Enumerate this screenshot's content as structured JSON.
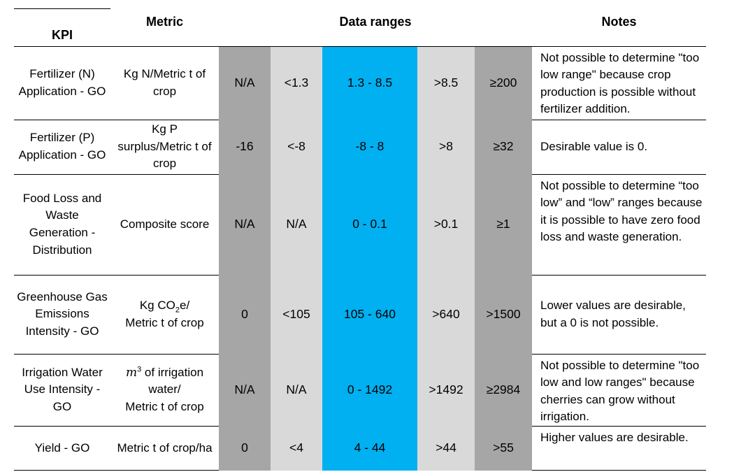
{
  "header": {
    "kpi": "KPI",
    "metric": "Metric",
    "data_ranges": "Data ranges",
    "notes": "Notes"
  },
  "rows": [
    {
      "kpi": "Fertilizer (N) Application - GO",
      "metric": "Kg N/Metric t of crop",
      "ranges": [
        "N/A",
        "<1.3",
        "1.3 - 8.5",
        ">8.5",
        "≥200"
      ],
      "notes": "Not possible to determine \"too low range\" because crop production is possible without fertilizer addition."
    },
    {
      "kpi": "Fertilizer (P) Application - GO",
      "metric": "Kg P surplus/Metric t of crop",
      "ranges": [
        "-16",
        "<-8",
        "-8 - 8",
        ">8",
        "≥32"
      ],
      "notes": "Desirable value is 0."
    },
    {
      "kpi": "Food Loss and Waste Generation - Distribution",
      "metric": "Composite score",
      "ranges": [
        "N/A",
        "N/A",
        "0 - 0.1",
        ">0.1",
        "≥1"
      ],
      "notes": "Not possible to determine “too low” and “low” ranges because it is possible to have zero food loss and waste generation."
    },
    {
      "kpi": "Greenhouse Gas Emissions Intensity - GO",
      "metric_parts": [
        "Kg CO",
        "2",
        "e/",
        "Metric t of crop"
      ],
      "ranges": [
        "0",
        "<105",
        "105 - 640",
        ">640",
        ">1500"
      ],
      "notes": "Lower values are desirable, but a 0 is not possible."
    },
    {
      "kpi": "Irrigation Water Use Intensity - GO",
      "metric_parts": [
        "m",
        "3",
        " of irrigation water/",
        "Metric t of crop"
      ],
      "ranges": [
        "N/A",
        "N/A",
        "0 - 1492",
        ">1492",
        "≥2984"
      ],
      "notes": "Not possible to determine \"too low and low ranges\" because cherries can grow without irrigation."
    },
    {
      "kpi": "Yield - GO",
      "metric": "Metric t of crop/ha",
      "ranges": [
        "0",
        "<4",
        "4 - 44",
        ">44",
        ">55"
      ],
      "notes": "Higher values are desirable."
    }
  ],
  "colors": {
    "extreme_band": "#a6a6a6",
    "outer_band": "#d9d9d9",
    "target_band": "#00b0f0"
  }
}
